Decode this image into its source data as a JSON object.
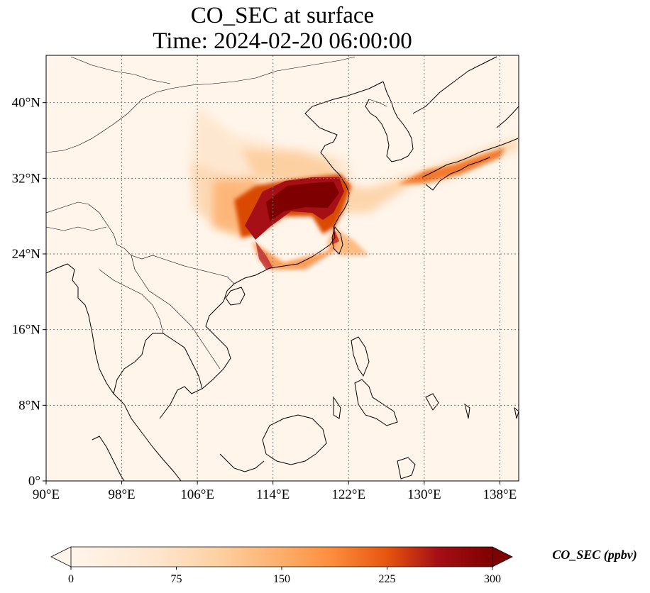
{
  "title": {
    "line1": "CO_SEC at surface",
    "line2": "Time: 2024-02-20 06:00:00"
  },
  "map": {
    "lon_range": [
      90,
      140
    ],
    "lat_range": [
      0,
      45
    ],
    "lon_ticks": [
      {
        "value": 90,
        "label": "90°E"
      },
      {
        "value": 98,
        "label": "98°E"
      },
      {
        "value": 106,
        "label": "106°E"
      },
      {
        "value": 114,
        "label": "114°E"
      },
      {
        "value": 122,
        "label": "122°E"
      },
      {
        "value": 130,
        "label": "130°E"
      },
      {
        "value": 138,
        "label": "138°E"
      }
    ],
    "lat_ticks": [
      {
        "value": 0,
        "label": "0°"
      },
      {
        "value": 8,
        "label": "8°N"
      },
      {
        "value": 16,
        "label": "16°N"
      },
      {
        "value": 24,
        "label": "24°N"
      },
      {
        "value": 32,
        "label": "32°N"
      },
      {
        "value": 40,
        "label": "40°N"
      }
    ],
    "gridlines": "dotted",
    "background_color": "#fff5eb",
    "colormap": [
      "#fff5eb",
      "#fdd0a2",
      "#fd8d3c",
      "#d94801",
      "#a50f15",
      "#7f0000"
    ]
  },
  "colorbar": {
    "label": "CO_SEC (ppbv)",
    "ticks": [
      {
        "value": 0,
        "label": "0"
      },
      {
        "value": 75,
        "label": "75"
      },
      {
        "value": 150,
        "label": "150"
      },
      {
        "value": 225,
        "label": "225"
      },
      {
        "value": 300,
        "label": "300"
      }
    ],
    "range": [
      0,
      300
    ],
    "extend": "both"
  }
}
